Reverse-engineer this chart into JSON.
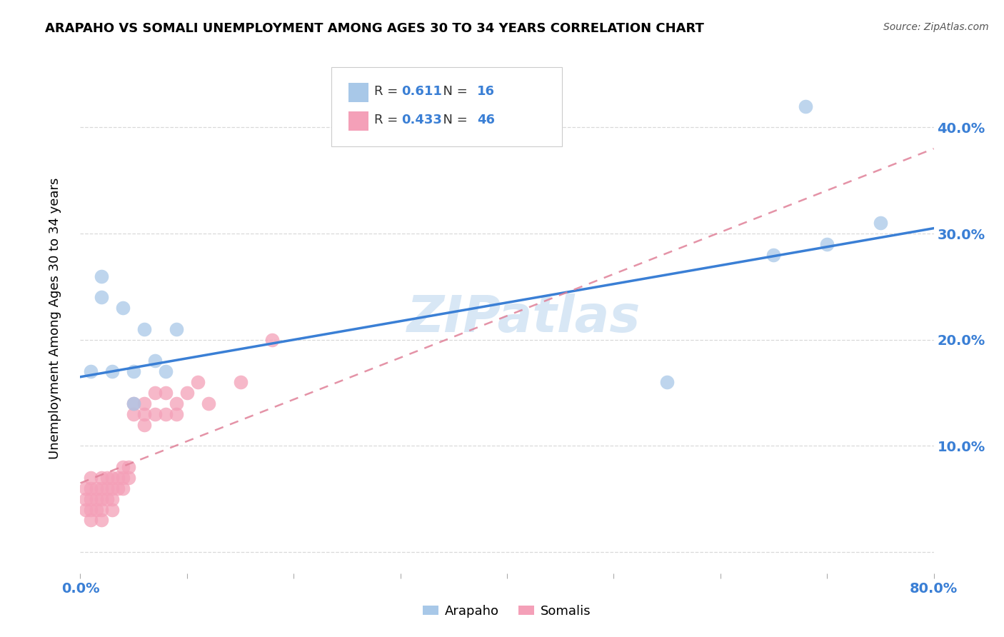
{
  "title": "ARAPAHO VS SOMALI UNEMPLOYMENT AMONG AGES 30 TO 34 YEARS CORRELATION CHART",
  "source": "Source: ZipAtlas.com",
  "ylabel": "Unemployment Among Ages 30 to 34 years",
  "xlim": [
    0.0,
    0.8
  ],
  "ylim": [
    -0.02,
    0.46
  ],
  "watermark": "ZIPatlas",
  "arapaho_R": 0.611,
  "arapaho_N": 16,
  "somali_R": 0.433,
  "somali_N": 46,
  "arapaho_color": "#a8c8e8",
  "somali_color": "#f4a0b8",
  "arapaho_line_color": "#3a7fd5",
  "somali_line_color": "#e08098",
  "arapaho_x": [
    0.01,
    0.02,
    0.02,
    0.03,
    0.04,
    0.05,
    0.05,
    0.06,
    0.07,
    0.08,
    0.09,
    0.55,
    0.65,
    0.68,
    0.7,
    0.75
  ],
  "arapaho_y": [
    0.17,
    0.26,
    0.24,
    0.17,
    0.23,
    0.14,
    0.17,
    0.21,
    0.18,
    0.17,
    0.21,
    0.16,
    0.28,
    0.42,
    0.29,
    0.31
  ],
  "somali_x": [
    0.005,
    0.005,
    0.005,
    0.01,
    0.01,
    0.01,
    0.01,
    0.01,
    0.015,
    0.015,
    0.015,
    0.02,
    0.02,
    0.02,
    0.02,
    0.02,
    0.025,
    0.025,
    0.025,
    0.03,
    0.03,
    0.03,
    0.03,
    0.035,
    0.035,
    0.04,
    0.04,
    0.04,
    0.045,
    0.045,
    0.05,
    0.05,
    0.06,
    0.06,
    0.06,
    0.07,
    0.07,
    0.08,
    0.08,
    0.09,
    0.09,
    0.1,
    0.11,
    0.12,
    0.15,
    0.18
  ],
  "somali_y": [
    0.04,
    0.05,
    0.06,
    0.04,
    0.05,
    0.06,
    0.07,
    0.03,
    0.04,
    0.05,
    0.06,
    0.05,
    0.06,
    0.04,
    0.07,
    0.03,
    0.05,
    0.06,
    0.07,
    0.05,
    0.06,
    0.07,
    0.04,
    0.06,
    0.07,
    0.07,
    0.08,
    0.06,
    0.08,
    0.07,
    0.13,
    0.14,
    0.12,
    0.14,
    0.13,
    0.13,
    0.15,
    0.13,
    0.15,
    0.14,
    0.13,
    0.15,
    0.16,
    0.14,
    0.16,
    0.2
  ],
  "arapaho_line_x": [
    0.0,
    0.8
  ],
  "arapaho_line_y": [
    0.165,
    0.305
  ],
  "somali_line_x": [
    0.0,
    0.8
  ],
  "somali_line_y": [
    0.065,
    0.38
  ],
  "background_color": "#ffffff",
  "grid_color": "#d0d0d0"
}
